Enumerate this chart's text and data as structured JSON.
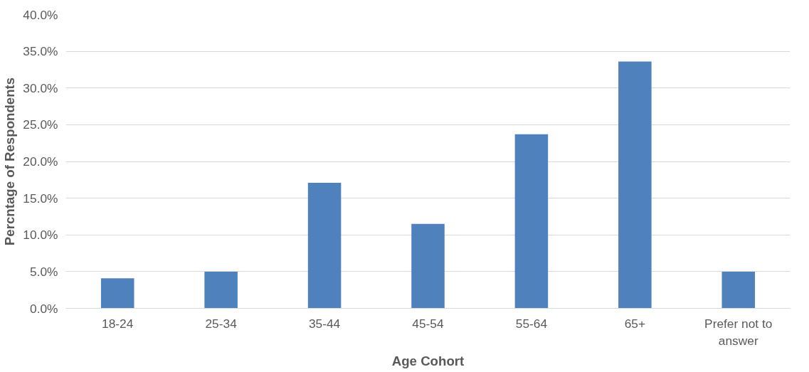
{
  "chart_data": {
    "type": "bar",
    "xlabel": "Age Cohort",
    "ylabel": "Percntage of Respondents",
    "categories": [
      "18-24",
      "25-34",
      "35-44",
      "45-54",
      "55-64",
      "65+",
      "Prefer not to answer"
    ],
    "values": [
      4.1,
      5.0,
      17.1,
      11.5,
      23.7,
      33.6,
      5.0
    ],
    "color": "#4f81bd",
    "ylim": [
      0,
      40
    ],
    "yticks": [
      {
        "value": 0,
        "label": "0.0%"
      },
      {
        "value": 5,
        "label": "5.0%"
      },
      {
        "value": 10,
        "label": "10.0%"
      },
      {
        "value": 15,
        "label": "15.0%"
      },
      {
        "value": 20,
        "label": "20.0%"
      },
      {
        "value": 25,
        "label": "25.0%"
      },
      {
        "value": 30,
        "label": "30.0%"
      },
      {
        "value": 35,
        "label": "35.0%"
      },
      {
        "value": 40,
        "label": "40.0%"
      }
    ],
    "grid": "y"
  }
}
